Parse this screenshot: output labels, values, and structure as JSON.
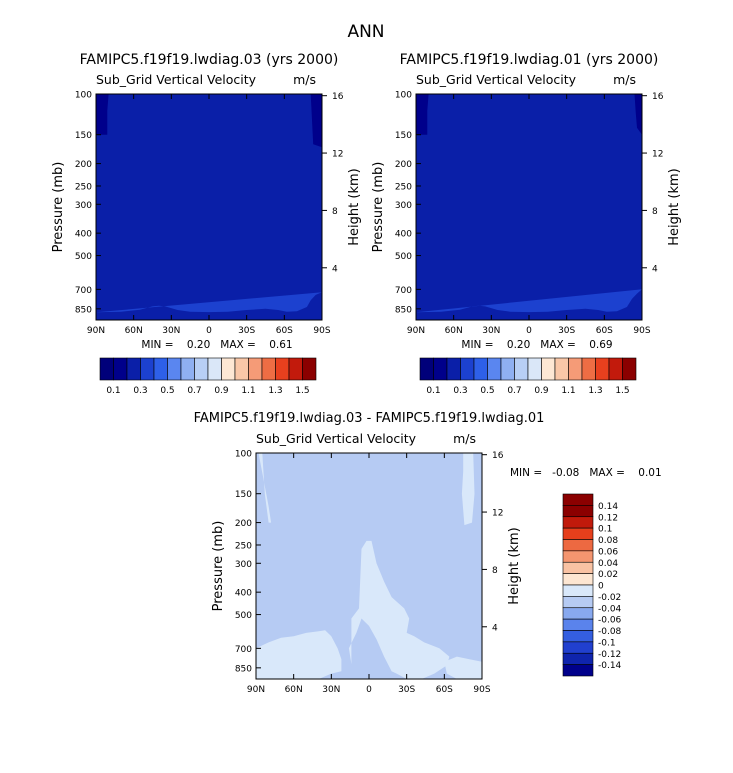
{
  "figure_title": "ANN",
  "colors": {
    "level_colors": [
      "#00008b",
      "#0a1fa8",
      "#1c41cf",
      "#2e60e8",
      "#5a86f0",
      "#8fb0f2",
      "#b8cff5",
      "#dae7f8",
      "#fde7d4",
      "#f9c7a8",
      "#f59b77",
      "#ee6d44",
      "#e8401e",
      "#c21a0c",
      "#8b0000"
    ],
    "diff_colors": [
      "#00008b",
      "#0f24ad",
      "#2140cf",
      "#345ee0",
      "#5a83ec",
      "#88a9ef",
      "#b6cbf3",
      "#d9e8fa",
      "#fde6d2",
      "#f9c2a3",
      "#f4956f",
      "#ed6941",
      "#e63f1c",
      "#c11a0b",
      "#8b0000"
    ]
  },
  "chart_data": [
    {
      "id": "panel-left",
      "type": "heatmap",
      "title": "FAMIPC5.f19f19.lwdiag.03 (yrs 2000)",
      "subtitle_left": "Sub_Grid Vertical Velocity",
      "subtitle_right": "m/s",
      "xlabel": "",
      "ylabel": "Pressure (mb)",
      "ylabel_right": "Height (km)",
      "x_ticks": [
        "90N",
        "60N",
        "30N",
        "0",
        "30S",
        "60S",
        "90S"
      ],
      "x_tick_values": [
        90,
        60,
        30,
        0,
        -30,
        -60,
        -90
      ],
      "y_ticks": [
        "100",
        "150",
        "200",
        "250",
        "300",
        "400",
        "500",
        "700",
        "850"
      ],
      "y_tick_values": [
        100,
        150,
        200,
        250,
        300,
        400,
        500,
        700,
        850
      ],
      "y_right_ticks": [
        "16",
        "12",
        "8",
        "4"
      ],
      "y_right_values": [
        16,
        12,
        8,
        4
      ],
      "xlim": [
        90,
        -90
      ],
      "ylim": [
        100,
        950
      ],
      "background_value": 0.2,
      "min_text": "MIN =    0.20   MAX =    0.61",
      "stats": {
        "min": 0.2,
        "max": 0.61
      },
      "regions": [
        {
          "label": "polar-cap-north",
          "value": 0.1,
          "lat": [
            90,
            90,
            81,
            81,
            80
          ],
          "p": [
            100,
            150,
            150,
            118,
            100
          ]
        },
        {
          "label": "polar-cap-south",
          "value": 0.1,
          "lat": [
            -81,
            -90,
            -90,
            -83,
            -82
          ],
          "p": [
            100,
            100,
            170,
            165,
            130
          ]
        },
        {
          "label": "boundary-layer",
          "value": 0.3,
          "lat": [
            90,
            70,
            55,
            45,
            40,
            35,
            25,
            15,
            0,
            -15,
            -30,
            -45,
            -55,
            -62,
            -70,
            -78,
            -81,
            -85,
            -90
          ],
          "p": [
            880,
            875,
            858,
            830,
            825,
            830,
            860,
            875,
            878,
            875,
            860,
            850,
            860,
            875,
            870,
            835,
            780,
            740,
            720
          ]
        }
      ],
      "colorbar": {
        "labels": [
          "0.1",
          "0.3",
          "0.5",
          "0.7",
          "0.9",
          "1.1",
          "1.3",
          "1.5"
        ],
        "levels": [
          0.1,
          0.2,
          0.3,
          0.4,
          0.5,
          0.6,
          0.7,
          0.8,
          0.9,
          1.0,
          1.1,
          1.2,
          1.3,
          1.4,
          1.5
        ]
      }
    },
    {
      "id": "panel-right",
      "type": "heatmap",
      "title": "FAMIPC5.f19f19.lwdiag.01 (yrs 2000)",
      "subtitle_left": "Sub_Grid Vertical Velocity",
      "subtitle_right": "m/s",
      "xlabel": "",
      "ylabel": "Pressure (mb)",
      "ylabel_right": "Height (km)",
      "x_ticks": [
        "90N",
        "60N",
        "30N",
        "0",
        "30S",
        "60S",
        "90S"
      ],
      "x_tick_values": [
        90,
        60,
        30,
        0,
        -30,
        -60,
        -90
      ],
      "y_ticks": [
        "100",
        "150",
        "200",
        "250",
        "300",
        "400",
        "500",
        "700",
        "850"
      ],
      "y_tick_values": [
        100,
        150,
        200,
        250,
        300,
        400,
        500,
        700,
        850
      ],
      "y_right_ticks": [
        "16",
        "12",
        "8",
        "4"
      ],
      "y_right_values": [
        16,
        12,
        8,
        4
      ],
      "xlim": [
        90,
        -90
      ],
      "ylim": [
        100,
        950
      ],
      "background_value": 0.2,
      "min_text": "MIN =    0.20   MAX =    0.69",
      "stats": {
        "min": 0.2,
        "max": 0.69
      },
      "regions": [
        {
          "label": "polar-cap-north",
          "value": 0.1,
          "lat": [
            90,
            90,
            81,
            81,
            80
          ],
          "p": [
            100,
            150,
            150,
            118,
            100
          ]
        },
        {
          "label": "polar-cap-south",
          "value": 0.1,
          "lat": [
            -84,
            -90,
            -90,
            -86,
            -85
          ],
          "p": [
            100,
            100,
            150,
            140,
            120
          ]
        },
        {
          "label": "boundary-layer",
          "value": 0.3,
          "lat": [
            90,
            70,
            55,
            45,
            40,
            35,
            25,
            15,
            0,
            -15,
            -30,
            -45,
            -55,
            -62,
            -70,
            -78,
            -82,
            -86,
            -90
          ],
          "p": [
            880,
            875,
            858,
            830,
            825,
            830,
            860,
            875,
            878,
            875,
            860,
            850,
            860,
            875,
            870,
            835,
            770,
            730,
            700
          ]
        }
      ],
      "colorbar": {
        "labels": [
          "0.1",
          "0.3",
          "0.5",
          "0.7",
          "0.9",
          "1.1",
          "1.3",
          "1.5"
        ],
        "levels": [
          0.1,
          0.2,
          0.3,
          0.4,
          0.5,
          0.6,
          0.7,
          0.8,
          0.9,
          1.0,
          1.1,
          1.2,
          1.3,
          1.4,
          1.5
        ]
      }
    },
    {
      "id": "panel-diff",
      "type": "heatmap",
      "title": "FAMIPC5.f19f19.lwdiag.03 - FAMIPC5.f19f19.lwdiag.01",
      "subtitle_left": "Sub_Grid Vertical Velocity",
      "subtitle_right": "m/s",
      "xlabel": "",
      "ylabel": "Pressure (mb)",
      "ylabel_right": "Height (km)",
      "x_ticks": [
        "90N",
        "60N",
        "30N",
        "0",
        "30S",
        "60S",
        "90S"
      ],
      "x_tick_values": [
        90,
        60,
        30,
        0,
        -30,
        -60,
        -90
      ],
      "y_ticks": [
        "100",
        "150",
        "200",
        "250",
        "300",
        "400",
        "500",
        "700",
        "850"
      ],
      "y_tick_values": [
        100,
        150,
        200,
        250,
        300,
        400,
        500,
        700,
        850
      ],
      "y_right_ticks": [
        "16",
        "12",
        "8",
        "4"
      ],
      "y_right_values": [
        16,
        12,
        8,
        4
      ],
      "xlim": [
        90,
        -90
      ],
      "ylim": [
        100,
        950
      ],
      "background_value": -0.01,
      "min_text": "MIN =   -0.08   MAX =    0.01",
      "stats": {
        "min": -0.08,
        "max": 0.01
      },
      "regions": [
        {
          "label": "north-polar-tongue",
          "value": 0.01,
          "lat": [
            89,
            85,
            83,
            80,
            78,
            80,
            84,
            88
          ],
          "p": [
            100,
            100,
            150,
            200,
            200,
            170,
            130,
            100
          ]
        },
        {
          "label": "south-polar-tongue",
          "value": 0.01,
          "lat": [
            -75,
            -83,
            -84,
            -82,
            -76,
            -74,
            -75
          ],
          "p": [
            100,
            100,
            150,
            200,
            205,
            150,
            120
          ]
        },
        {
          "label": "tropical-plume",
          "value": 0.01,
          "lat": [
            14,
            8,
            6,
            2,
            -2,
            -6,
            -12,
            -18,
            -28,
            -32,
            -30,
            -36,
            -44,
            -56,
            -64,
            -62,
            -52,
            -42,
            -30,
            -22,
            -18,
            -12,
            -6,
            0,
            6,
            10,
            16,
            14
          ],
          "p": [
            520,
            470,
            260,
            240,
            240,
            300,
            360,
            420,
            470,
            520,
            600,
            620,
            660,
            700,
            760,
            830,
            900,
            950,
            950,
            900,
            880,
            760,
            640,
            560,
            520,
            600,
            700,
            820
          ]
        },
        {
          "label": "low-level-band",
          "value": 0.01,
          "lat": [
            90,
            80,
            70,
            60,
            50,
            40,
            35,
            30,
            25,
            22,
            22,
            30,
            40,
            50,
            60,
            70,
            80,
            90
          ],
          "p": [
            700,
            660,
            630,
            620,
            600,
            590,
            585,
            620,
            700,
            780,
            880,
            900,
            950,
            950,
            950,
            950,
            950,
            950
          ]
        },
        {
          "label": "near-surface-south",
          "value": 0.01,
          "lat": [
            -60,
            -70,
            -80,
            -90,
            -90,
            -80,
            -70,
            -62
          ],
          "p": [
            800,
            760,
            780,
            800,
            950,
            950,
            950,
            900
          ]
        }
      ],
      "colorbar": {
        "labels": [
          "0.14",
          "0.12",
          "0.1",
          "0.08",
          "0.06",
          "0.04",
          "0.02",
          "0",
          "-0.02",
          "-0.04",
          "-0.06",
          "-0.08",
          "-0.1",
          "-0.12",
          "-0.14"
        ],
        "levels": [
          0.14,
          0.12,
          0.1,
          0.08,
          0.06,
          0.04,
          0.02,
          0,
          -0.02,
          -0.04,
          -0.06,
          -0.08,
          -0.1,
          -0.12,
          -0.14
        ]
      }
    }
  ]
}
